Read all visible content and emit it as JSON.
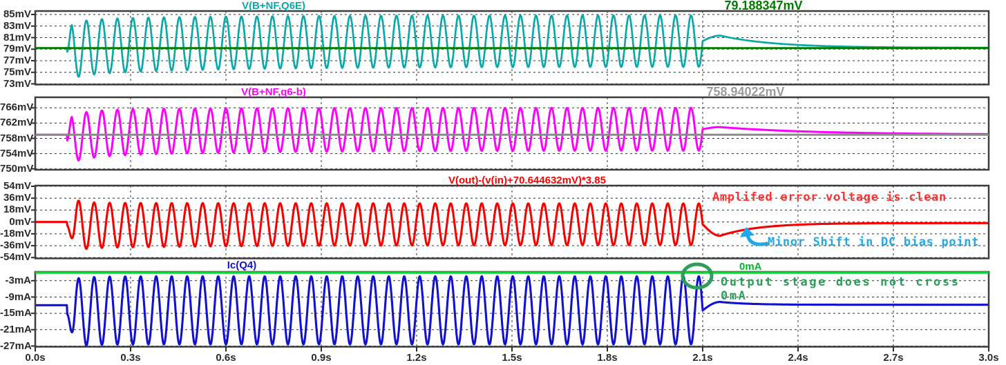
{
  "app": {
    "name": "waveform-viewer"
  },
  "x_axis": {
    "unit": "s",
    "xlim": [
      0,
      3
    ],
    "tick_labels": [
      "0.0s",
      "0.3s",
      "0.6s",
      "0.9s",
      "1.2s",
      "1.5s",
      "1.8s",
      "2.1s",
      "2.4s",
      "2.7s",
      "3.0s"
    ],
    "tick_values": [
      0,
      0.3,
      0.6,
      0.9,
      1.2,
      1.5,
      1.8,
      2.1,
      2.4,
      2.7,
      3.0
    ]
  },
  "chart_data": [
    {
      "type": "line",
      "title": "V(B+NF,Q6E)",
      "trace_color": "#0aa8a8",
      "trace_width": 2.7,
      "y_tick_labels": [
        "85mV",
        "83mV",
        "81mV",
        "79mV",
        "77mV",
        "75mV",
        "73mV"
      ],
      "y_tick_values": [
        85,
        83,
        81,
        79,
        77,
        75,
        73
      ],
      "ylim": [
        72.9,
        85.6
      ],
      "grid": true,
      "ref_line": {
        "value": 79.188347,
        "label": "79.188347mV",
        "color": "#007b00",
        "label_color": "#007b00"
      },
      "signal": {
        "flat": 79.19,
        "t_start": 0.1,
        "t_end": 2.1,
        "freq_hz": 20.5,
        "sign": 1,
        "ramp": 0.015,
        "center_start": 79.4,
        "center_end": 80.4,
        "amp_start": 4.8,
        "amp_end": 4.45,
        "drift_tau": 0.45,
        "first_bias": -0.9,
        "first_bias_tau": 0.06,
        "post_peak": 81.35,
        "post_settle": 79.24,
        "post_tau": 0.17
      }
    },
    {
      "type": "line",
      "title": "V(B+NF,q6-b)",
      "trace_color": "#ff00ff",
      "trace_width": 3,
      "y_tick_labels": [
        "766mV",
        "762mV",
        "758mV",
        "754mV",
        "750mV"
      ],
      "y_tick_values": [
        766,
        762,
        758,
        754,
        750
      ],
      "ylim": [
        749.7,
        768.8
      ],
      "grid": true,
      "ref_line": {
        "value": 758.94022,
        "label": "758.94022mV",
        "color": "#8a8a8a",
        "label_color": "#9c9c9c"
      },
      "signal": {
        "flat": 758.94,
        "t_start": 0.1,
        "t_end": 2.1,
        "freq_hz": 20.5,
        "sign": 1,
        "ramp": 0.015,
        "center_start": 759.3,
        "center_end": 760.4,
        "amp_start": 6.2,
        "amp_end": 5.6,
        "drift_tau": 0.45,
        "first_bias": -1.9,
        "first_bias_tau": 0.06,
        "post_peak": 760.95,
        "post_settle": 758.99,
        "post_tau": 0.3
      }
    },
    {
      "type": "line",
      "title": "V(out)-(v(in)+70.644632mV)*3.85",
      "trace_color": "#f80000",
      "trace_width": 3.1,
      "y_tick_labels": [
        "54mV",
        "36mV",
        "18mV",
        "0mV",
        "-18mV",
        "-36mV",
        "-54mV"
      ],
      "y_tick_values": [
        54,
        36,
        18,
        0,
        -18,
        -36,
        -54
      ],
      "ylim": [
        -54.5,
        55.1
      ],
      "grid": true,
      "signal": {
        "flat": 0,
        "t_start": 0.1,
        "t_end": 2.1,
        "freq_hz": 20.5,
        "sign": -1,
        "ramp": 0.03,
        "center_start": -5.5,
        "center_end": -3.5,
        "amp_start": 34.5,
        "amp_end": 31.5,
        "drift_tau": 0.5,
        "first_gain": 0.32,
        "first_gain_tau": 0.03,
        "post_peak": -21,
        "post_settle": -1.7,
        "post_tau": 0.12
      },
      "annotations": [
        {
          "text": "Amplifed error voltage is clean",
          "color": "#ff3232"
        },
        {
          "text": "Minor Shift in DC bias point",
          "color": "#21a8e6",
          "arrow": true,
          "arrow_color": "#21a8e6"
        }
      ]
    },
    {
      "type": "line",
      "title": "Ic(Q4)",
      "trace_color": "#1111cf",
      "trace_width": 3.1,
      "y_tick_labels": [
        "-3mA",
        "-9mA",
        "-15mA",
        "-21mA",
        "-27mA"
      ],
      "y_tick_values": [
        -3,
        -9,
        -15,
        -21,
        -27
      ],
      "ylim": [
        -27.5,
        0.25
      ],
      "grid": true,
      "ref_line": {
        "value": 0,
        "label": "0mA",
        "color": "#0dd232",
        "label_color": "#00b82a"
      },
      "signal": {
        "flat": -12,
        "t_start": 0.1,
        "t_end": 2.1,
        "freq_hz": 20.5,
        "sign": -1,
        "ramp": 0.025,
        "center_start": -13.9,
        "center_end": -13.9,
        "amp_start": 12.5,
        "amp_end": 12.5,
        "drift_tau": 0.5,
        "first_bias": -1.4,
        "first_bias_tau": 0.05,
        "post_peak": -10.8,
        "post_settle": -11.85,
        "post_tau": 0.09
      },
      "annotations": [
        {
          "text": "Output stage does not cross",
          "color": "#2b9e57"
        },
        {
          "text": "0mA",
          "color": "#2b9e57"
        }
      ],
      "circle_marker": {
        "color": "#2b9e57"
      }
    }
  ]
}
